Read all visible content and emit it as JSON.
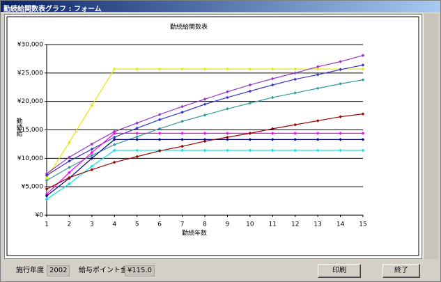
{
  "window": {
    "title": "勤続給関数表グラフ : フォーム"
  },
  "chart_data": {
    "type": "line",
    "title": "勤続給関数表",
    "x_label": "勤続年数",
    "y_label": "勤続給",
    "categories": [
      1,
      2,
      3,
      4,
      5,
      6,
      7,
      8,
      9,
      10,
      11,
      12,
      13,
      14,
      15
    ],
    "ylim": [
      0,
      30000
    ],
    "yticks": [
      {
        "value": 0,
        "label": "¥0"
      },
      {
        "value": 5000,
        "label": "¥5,000"
      },
      {
        "value": 10000,
        "label": "¥10,000"
      },
      {
        "value": 15000,
        "label": "¥15,000"
      },
      {
        "value": 20000,
        "label": "¥20,000"
      },
      {
        "value": 25000,
        "label": "¥25,000"
      },
      {
        "value": 30000,
        "label": "¥30,000"
      }
    ],
    "grid": true,
    "series": [
      {
        "color": "#e8e800",
        "values": [
          6500,
          12800,
          19300,
          25700,
          25700,
          25700,
          25700,
          25700,
          25700,
          25700,
          25700,
          25700,
          25700,
          25700,
          25700
        ]
      },
      {
        "color": "#9933cc",
        "values": [
          7300,
          10200,
          12500,
          14700,
          16200,
          17700,
          19100,
          20400,
          21700,
          22900,
          24000,
          25000,
          26100,
          27000,
          28100
        ]
      },
      {
        "color": "#3333cc",
        "values": [
          7000,
          9500,
          11600,
          13700,
          15300,
          16800,
          18100,
          19500,
          20700,
          21800,
          22900,
          23900,
          24700,
          25600,
          26400
        ]
      },
      {
        "color": "#339999",
        "values": [
          6100,
          8400,
          10500,
          12400,
          13800,
          15200,
          16500,
          17600,
          18700,
          19700,
          20700,
          21500,
          22300,
          23100,
          23800
        ]
      },
      {
        "color": "#ff00ff",
        "values": [
          3700,
          7500,
          11000,
          14400,
          14400,
          14400,
          14400,
          14400,
          14400,
          14400,
          14400,
          14400,
          14400,
          14400,
          14400
        ]
      },
      {
        "color": "#000080",
        "values": [
          3400,
          6500,
          10000,
          13300,
          13300,
          13300,
          13300,
          13300,
          13300,
          13300,
          13300,
          13300,
          13300,
          13300,
          13300
        ]
      },
      {
        "color": "#00e8e8",
        "values": [
          2800,
          5500,
          8600,
          11400,
          11400,
          11400,
          11400,
          11400,
          11400,
          11400,
          11400,
          11400,
          11400,
          11400,
          11400
        ]
      },
      {
        "color": "#990000",
        "values": [
          4600,
          6600,
          8000,
          9300,
          10300,
          11300,
          12100,
          13000,
          13700,
          14400,
          15200,
          15900,
          16600,
          17300,
          17800
        ]
      }
    ]
  },
  "footer": {
    "year_label": "施行年度",
    "year": "2002",
    "point_label": "給与ポイント金額",
    "point": "¥115.0"
  },
  "buttons": {
    "print": "印刷",
    "close": "終了"
  }
}
